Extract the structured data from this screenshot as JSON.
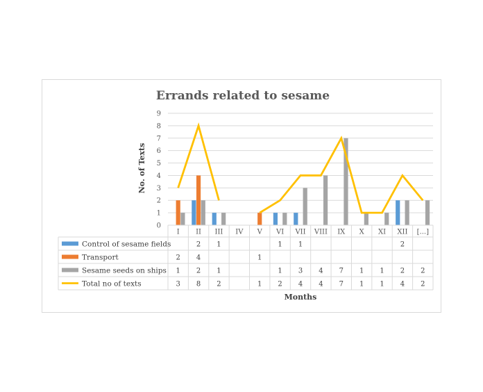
{
  "chart_data": {
    "type": "bar",
    "title": "Errands related to sesame",
    "xlabel": "Months",
    "ylabel": "No. of Texts",
    "ylim": [
      0,
      9
    ],
    "yticks": [
      0,
      1,
      2,
      3,
      4,
      5,
      6,
      7,
      8,
      9
    ],
    "grid": true,
    "legend_placement": "table-left",
    "categories": [
      "I",
      "II",
      "III",
      "IV",
      "V",
      "VI",
      "VII",
      "VIII",
      "IX",
      "X",
      "XI",
      "XII",
      "[...]"
    ],
    "series": [
      {
        "name": "Control of sesame fields",
        "kind": "bar",
        "color": "#5b9bd5",
        "values": [
          null,
          2,
          1,
          null,
          null,
          1,
          1,
          null,
          null,
          null,
          null,
          2,
          null
        ]
      },
      {
        "name": "Transport",
        "kind": "bar",
        "color": "#ed7d31",
        "values": [
          2,
          4,
          null,
          null,
          1,
          null,
          null,
          null,
          null,
          null,
          null,
          null,
          null
        ]
      },
      {
        "name": "Sesame seeds on ships",
        "kind": "bar",
        "color": "#a5a5a5",
        "values": [
          1,
          2,
          1,
          null,
          null,
          1,
          3,
          4,
          7,
          1,
          1,
          2,
          2
        ]
      },
      {
        "name": "Total no of texts",
        "kind": "line",
        "color": "#ffc000",
        "values": [
          3,
          8,
          2,
          null,
          1,
          2,
          4,
          4,
          7,
          1,
          1,
          4,
          2
        ]
      }
    ]
  }
}
